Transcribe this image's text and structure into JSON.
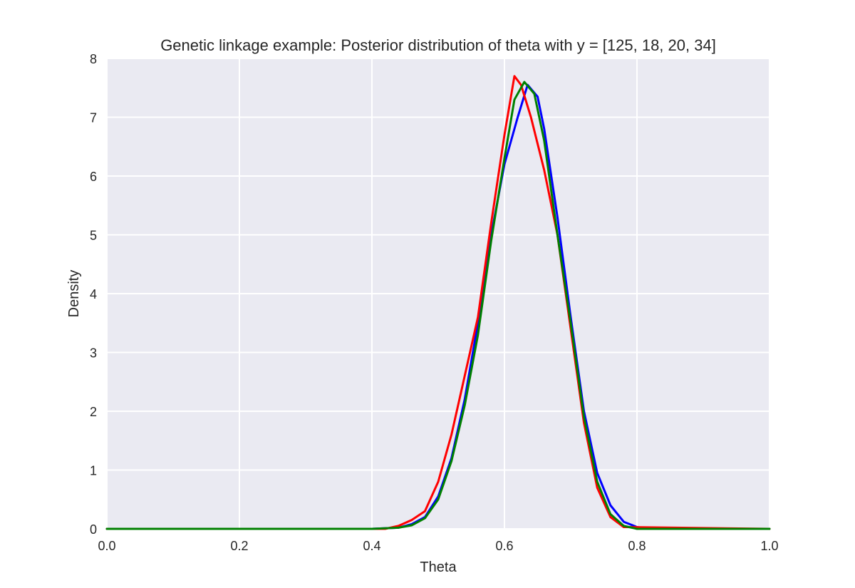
{
  "chart_data": {
    "type": "line",
    "title": "Genetic linkage example: Posterior distribution of theta with y = [125, 18, 20, 34]",
    "xlabel": "Theta",
    "ylabel": "Density",
    "xlim": [
      0.0,
      1.0
    ],
    "ylim": [
      0,
      8
    ],
    "xticks": [
      "0.0",
      "0.2",
      "0.4",
      "0.6",
      "0.8",
      "1.0"
    ],
    "yticks": [
      "0",
      "1",
      "2",
      "3",
      "4",
      "5",
      "6",
      "7",
      "8"
    ],
    "grid": true,
    "background": "#eaeaf2",
    "series": [
      {
        "color": "#0000ff",
        "x": [
          0.0,
          0.4,
          0.44,
          0.46,
          0.48,
          0.5,
          0.52,
          0.54,
          0.56,
          0.58,
          0.6,
          0.62,
          0.635,
          0.65,
          0.66,
          0.68,
          0.7,
          0.72,
          0.74,
          0.76,
          0.78,
          0.8,
          0.82,
          1.0
        ],
        "y": [
          0,
          0,
          0.02,
          0.08,
          0.2,
          0.55,
          1.2,
          2.2,
          3.5,
          5.0,
          6.2,
          7.0,
          7.55,
          7.35,
          6.8,
          5.3,
          3.6,
          2.0,
          0.95,
          0.4,
          0.12,
          0.03,
          0.0,
          0.0
        ]
      },
      {
        "color": "#ff0000",
        "x": [
          0.0,
          0.42,
          0.44,
          0.46,
          0.48,
          0.5,
          0.52,
          0.54,
          0.56,
          0.58,
          0.6,
          0.615,
          0.625,
          0.64,
          0.66,
          0.68,
          0.7,
          0.72,
          0.74,
          0.76,
          0.78,
          1.0
        ],
        "y": [
          0,
          0,
          0.05,
          0.15,
          0.3,
          0.8,
          1.6,
          2.6,
          3.6,
          5.2,
          6.7,
          7.7,
          7.55,
          7.0,
          6.1,
          5.0,
          3.4,
          1.8,
          0.7,
          0.2,
          0.03,
          0.0
        ]
      },
      {
        "color": "#008000",
        "x": [
          0.0,
          0.4,
          0.44,
          0.46,
          0.48,
          0.5,
          0.52,
          0.54,
          0.56,
          0.58,
          0.6,
          0.615,
          0.63,
          0.645,
          0.66,
          0.68,
          0.7,
          0.72,
          0.74,
          0.76,
          0.78,
          0.8,
          1.0
        ],
        "y": [
          0,
          0,
          0.02,
          0.06,
          0.18,
          0.5,
          1.15,
          2.1,
          3.3,
          4.9,
          6.3,
          7.3,
          7.6,
          7.4,
          6.6,
          5.0,
          3.5,
          1.9,
          0.8,
          0.25,
          0.05,
          0.0,
          0.0
        ]
      }
    ]
  }
}
